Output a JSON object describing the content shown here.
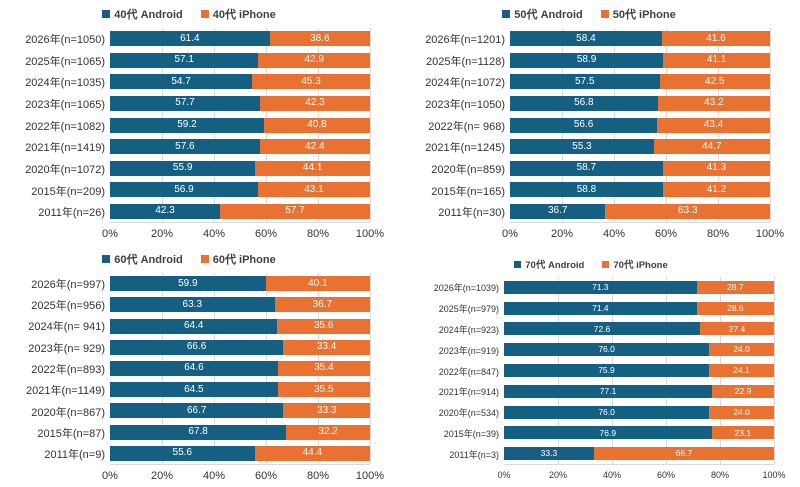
{
  "page": {
    "description": "Android vs iPhone share by age group and survey year",
    "background": "#ffffff"
  },
  "colors": {
    "android": "#156082",
    "iphone": "#E97132",
    "gridline": "#d9d9d9",
    "text": "#333333"
  },
  "chart_data": [
    {
      "type": "bar",
      "stacked": true,
      "orientation": "horizontal",
      "legend": [
        "40代 Android",
        "40代 iPhone"
      ],
      "categories": [
        "2026年(n=1050)",
        "2025年(n=1065)",
        "2024年(n=1035)",
        "2023年(n=1065)",
        "2022年(n=1082)",
        "2021年(n=1419)",
        "2020年(n=1072)",
        "2015年(n=209)",
        "2011年(n=26)"
      ],
      "series": [
        {
          "name": "40代 Android",
          "color": "#156082",
          "values": [
            61.4,
            57.1,
            54.7,
            57.7,
            59.2,
            57.6,
            55.9,
            56.9,
            42.3
          ]
        },
        {
          "name": "40代 iPhone",
          "color": "#E97132",
          "values": [
            38.6,
            42.9,
            45.3,
            42.3,
            40.8,
            42.4,
            44.1,
            43.1,
            57.7
          ]
        }
      ],
      "xlim": [
        0,
        100
      ],
      "xticks": [
        "0%",
        "20%",
        "40%",
        "60%",
        "80%",
        "100%"
      ],
      "grid": true,
      "legend_position": "top",
      "size": "normal"
    },
    {
      "type": "bar",
      "stacked": true,
      "orientation": "horizontal",
      "legend": [
        "50代 Android",
        "50代 iPhone"
      ],
      "categories": [
        "2026年(n=1201)",
        "2025年(n=1128)",
        "2024年(n=1072)",
        "2023年(n=1050)",
        "2022年(n= 968)",
        "2021年(n=1245)",
        "2020年(n=859)",
        "2015年(n=165)",
        "2011年(n=30)"
      ],
      "series": [
        {
          "name": "50代 Android",
          "color": "#156082",
          "values": [
            58.4,
            58.9,
            57.5,
            56.8,
            56.6,
            55.3,
            58.7,
            58.8,
            36.7
          ]
        },
        {
          "name": "50代 iPhone",
          "color": "#E97132",
          "values": [
            41.6,
            41.1,
            42.5,
            43.2,
            43.4,
            44.7,
            41.3,
            41.2,
            63.3
          ]
        }
      ],
      "xlim": [
        0,
        100
      ],
      "xticks": [
        "0%",
        "20%",
        "40%",
        "60%",
        "80%",
        "100%"
      ],
      "grid": true,
      "legend_position": "top",
      "size": "normal"
    },
    {
      "type": "bar",
      "stacked": true,
      "orientation": "horizontal",
      "legend": [
        "60代 Android",
        "60代 iPhone"
      ],
      "categories": [
        "2026年(n=997)",
        "2025年(n=956)",
        "2024年(n= 941)",
        "2023年(n= 929)",
        "2022年(n=893)",
        "2021年(n=1149)",
        "2020年(n=867)",
        "2015年(n=87)",
        "2011年(n=9)"
      ],
      "series": [
        {
          "name": "60代 Android",
          "color": "#156082",
          "values": [
            59.9,
            63.3,
            64.4,
            66.6,
            64.6,
            64.5,
            66.7,
            67.8,
            55.6
          ]
        },
        {
          "name": "60代 iPhone",
          "color": "#E97132",
          "values": [
            40.1,
            36.7,
            35.6,
            33.4,
            35.4,
            35.5,
            33.3,
            32.2,
            44.4
          ]
        }
      ],
      "xlim": [
        0,
        100
      ],
      "xticks": [
        "0%",
        "20%",
        "40%",
        "60%",
        "80%",
        "100%"
      ],
      "grid": true,
      "legend_position": "top",
      "size": "normal"
    },
    {
      "type": "bar",
      "stacked": true,
      "orientation": "horizontal",
      "legend": [
        "70代 Android",
        "70代 iPhone"
      ],
      "categories": [
        "2026年(n=1039)",
        "2025年(n=979)",
        "2024年(n=923)",
        "2023年(n=919)",
        "2022年(n=847)",
        "2021年(n=914)",
        "2020年(n=534)",
        "2015年(n=39)",
        "2011年(n=3)"
      ],
      "series": [
        {
          "name": "70代 Android",
          "color": "#156082",
          "values": [
            71.3,
            71.4,
            72.6,
            76.0,
            75.9,
            77.1,
            76.0,
            76.9,
            33.3
          ]
        },
        {
          "name": "70代 iPhone",
          "color": "#E97132",
          "values": [
            28.7,
            28.6,
            27.4,
            24.0,
            24.1,
            22.9,
            24.0,
            23.1,
            66.7
          ]
        }
      ],
      "xlim": [
        0,
        100
      ],
      "xticks": [
        "0%",
        "20%",
        "40%",
        "60%",
        "80%",
        "100%"
      ],
      "grid": true,
      "legend_position": "top",
      "size": "small"
    }
  ]
}
